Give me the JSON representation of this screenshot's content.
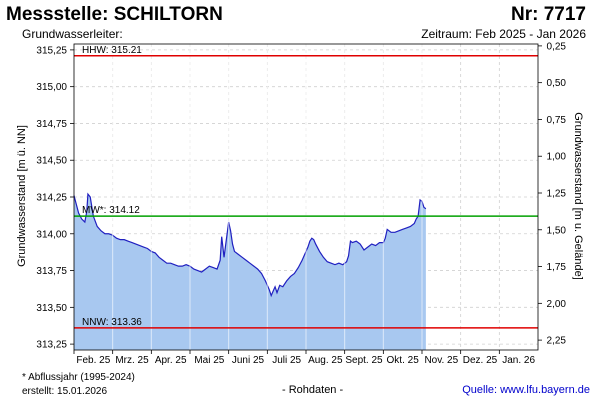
{
  "header": {
    "title": "Messstelle: SCHILTORN",
    "number": "Nr: 7717",
    "subtitle_left": "Grundwasserleiter:",
    "subtitle_right": "Zeitraum: Feb 2025 - Jan 2026"
  },
  "footer": {
    "footnote": "* Abflussjahr (1995-2024)",
    "created": "erstellt:  15.01.2026",
    "raw": "- Rohdaten -",
    "source": "Quelle: www.lfu.bayern.de"
  },
  "chart_data": {
    "type": "area",
    "ylabel_left": "Grundwasserstand [m ü. NN]",
    "ylabel_right": "Grundwasserstand [m u. Gelände]",
    "ylim": [
      313.21,
      315.29
    ],
    "yticks_left": [
      "315,25",
      "315,00",
      "314,75",
      "314,50",
      "314,25",
      "314,00",
      "313,75",
      "313,50",
      "313,25"
    ],
    "yticks_left_values": [
      315.25,
      315.0,
      314.75,
      314.5,
      314.25,
      314.0,
      313.75,
      313.5,
      313.25
    ],
    "yticks_right": [
      "0,25",
      "0,50",
      "0,75",
      "1,00",
      "1,25",
      "1,50",
      "1,75",
      "2,00",
      "2,25"
    ],
    "yticks_right_values": [
      0.25,
      0.5,
      0.75,
      1.0,
      1.25,
      1.5,
      1.75,
      2.0,
      2.25
    ],
    "xticks": [
      "Feb. 25",
      "Mrz. 25",
      "Apr. 25",
      "Mai 25",
      "Juni 25",
      "Juli 25",
      "Aug. 25",
      "Sept. 25",
      "Okt. 25",
      "Nov. 25",
      "Dez. 25",
      "Jan. 26"
    ],
    "grid": true,
    "reference_lines": [
      {
        "label": "HHW: 315.21",
        "value": 315.21,
        "color": "#e00000"
      },
      {
        "label": "MW*: 314.12",
        "value": 314.12,
        "color": "#00a000"
      },
      {
        "label": "NNW: 313.36",
        "value": 313.36,
        "color": "#e00000"
      }
    ],
    "series": [
      {
        "line_color": "#2020c0",
        "fill_color": "#a8c8f0",
        "x": [
          0.0,
          0.06,
          0.12,
          0.2,
          0.28,
          0.33,
          0.36,
          0.42,
          0.5,
          0.6,
          0.7,
          0.8,
          0.9,
          1.0,
          1.1,
          1.2,
          1.3,
          1.4,
          1.5,
          1.6,
          1.7,
          1.8,
          1.9,
          2.0,
          2.1,
          2.2,
          2.3,
          2.4,
          2.5,
          2.6,
          2.7,
          2.8,
          2.9,
          3.0,
          3.1,
          3.2,
          3.3,
          3.4,
          3.5,
          3.6,
          3.7,
          3.78,
          3.82,
          3.88,
          3.95,
          4.0,
          4.05,
          4.1,
          4.15,
          4.25,
          4.35,
          4.45,
          4.55,
          4.65,
          4.75,
          4.85,
          4.95,
          5.05,
          5.1,
          5.15,
          5.2,
          5.25,
          5.32,
          5.4,
          5.5,
          5.6,
          5.7,
          5.8,
          5.9,
          6.0,
          6.05,
          6.1,
          6.15,
          6.2,
          6.25,
          6.35,
          6.45,
          6.55,
          6.65,
          6.75,
          6.85,
          6.95,
          7.05,
          7.1,
          7.15,
          7.2,
          7.3,
          7.4,
          7.5,
          7.6,
          7.7,
          7.8,
          7.9,
          8.0,
          8.05,
          8.1,
          8.2,
          8.3,
          8.4,
          8.5,
          8.6,
          8.7,
          8.8,
          8.85,
          8.9,
          8.95,
          9.0,
          9.05,
          9.1
        ],
        "values": [
          314.26,
          314.2,
          314.14,
          314.1,
          314.08,
          314.15,
          314.27,
          314.25,
          314.12,
          314.05,
          314.02,
          314.0,
          314.0,
          313.99,
          313.97,
          313.96,
          313.96,
          313.95,
          313.94,
          313.93,
          313.92,
          313.91,
          313.9,
          313.88,
          313.87,
          313.84,
          313.82,
          313.8,
          313.8,
          313.79,
          313.78,
          313.78,
          313.79,
          313.78,
          313.76,
          313.75,
          313.74,
          313.76,
          313.78,
          313.77,
          313.76,
          313.82,
          313.98,
          313.84,
          313.98,
          314.08,
          314.02,
          313.93,
          313.88,
          313.86,
          313.84,
          313.82,
          313.8,
          313.78,
          313.76,
          313.73,
          313.68,
          313.62,
          313.58,
          313.61,
          313.64,
          313.6,
          313.65,
          313.64,
          313.68,
          313.71,
          313.73,
          313.77,
          313.82,
          313.88,
          313.91,
          313.95,
          313.97,
          313.96,
          313.93,
          313.88,
          313.84,
          313.81,
          313.8,
          313.79,
          313.8,
          313.79,
          313.81,
          313.85,
          313.95,
          313.94,
          313.95,
          313.93,
          313.89,
          313.91,
          313.93,
          313.92,
          313.94,
          313.94,
          313.97,
          314.03,
          314.01,
          314.01,
          314.02,
          314.03,
          314.04,
          314.05,
          314.07,
          314.1,
          314.12,
          314.23,
          314.22,
          314.18,
          314.17
        ]
      }
    ]
  }
}
